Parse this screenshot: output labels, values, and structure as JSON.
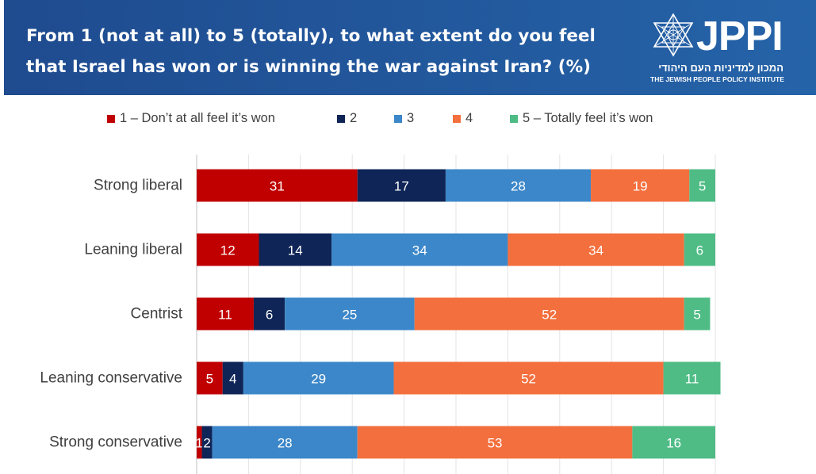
{
  "header": {
    "title_line1": "From 1 (not at all) to 5 (totally), to what extent do you feel",
    "title_line2": "that Israel has won or is winning the war against Iran? (%)",
    "logo_word": "JPPI",
    "logo_hebrew": "המכון למדיניות העם היהודי",
    "logo_english": "THE JEWISH PEOPLE POLICY INSTITUTE",
    "background_color": "#1f4b8f"
  },
  "chart_data": {
    "type": "bar",
    "orientation": "horizontal-stacked",
    "categories": [
      "Strong liberal",
      "Leaning liberal",
      "Centrist",
      "Leaning conservative",
      "Strong conservative"
    ],
    "series": [
      {
        "name": "1 – Don’t at all feel it’s won",
        "color": "#c00000",
        "values": [
          31,
          12,
          11,
          5,
          1
        ]
      },
      {
        "name": "2",
        "color": "#0f2557",
        "values": [
          17,
          14,
          6,
          4,
          2
        ]
      },
      {
        "name": "3",
        "color": "#3c87c9",
        "values": [
          28,
          34,
          25,
          29,
          28
        ]
      },
      {
        "name": "4",
        "color": "#f36f3d",
        "values": [
          19,
          34,
          52,
          52,
          53
        ]
      },
      {
        "name": "5 – Totally feel it’s won",
        "color": "#4fbc86",
        "values": [
          5,
          6,
          5,
          11,
          16
        ]
      }
    ],
    "legend_position": "top",
    "grid": true,
    "data_labels": true
  }
}
